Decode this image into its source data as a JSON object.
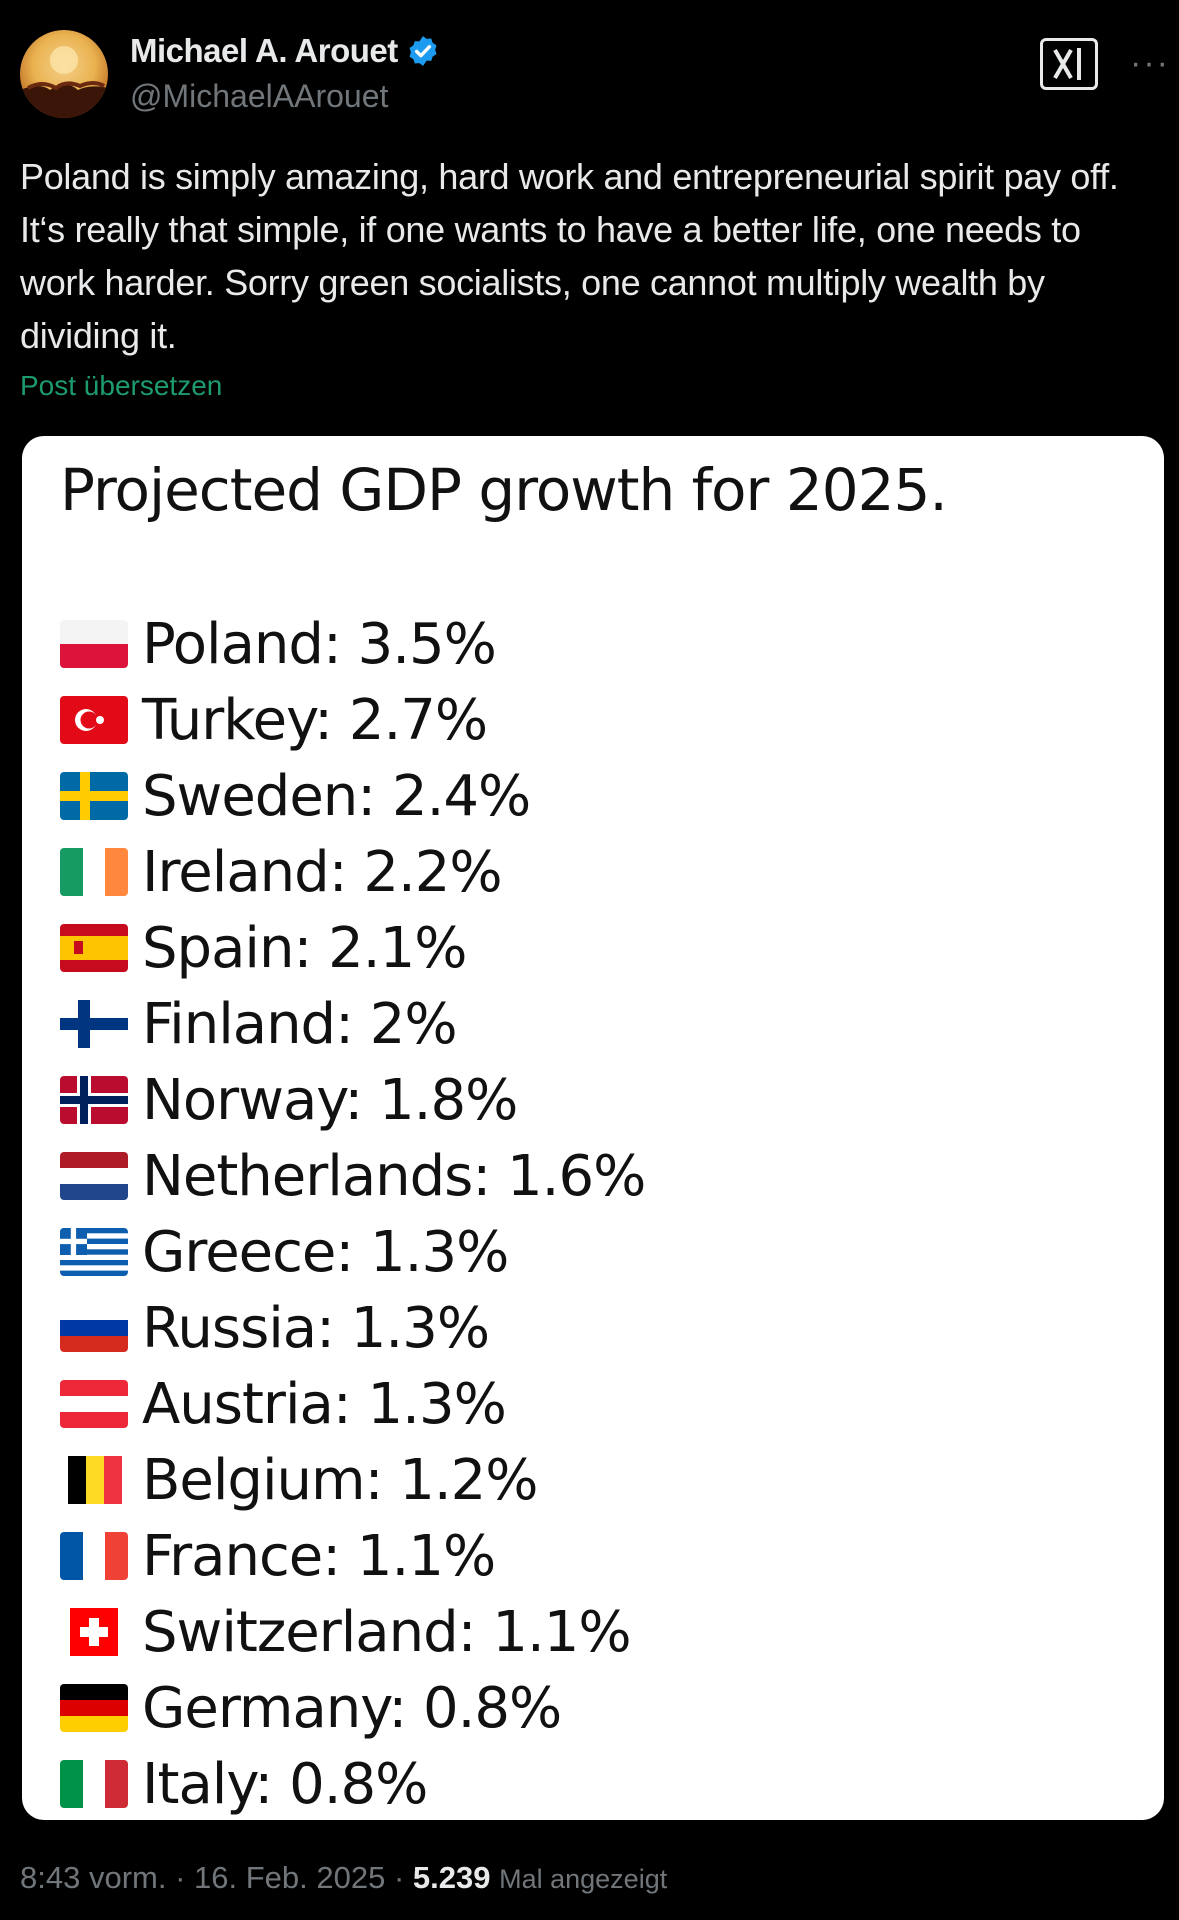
{
  "author": {
    "name": "Michael A. Arouet",
    "handle": "@MichaelAArouet"
  },
  "tweet": {
    "text": "Poland is simply amazing, hard work and entrepreneurial spirit pay off. It‘s really that simple, if one wants to have a better life, one needs to work harder. Sorry green socialists, one cannot multiply wealth by dividing it.",
    "translate_label": "Post übersetzen"
  },
  "card": {
    "title": "Projected GDP growth for 2025.",
    "rows": [
      {
        "country": "Poland",
        "value": "3.5%",
        "flag": "poland-flag-icon"
      },
      {
        "country": "Turkey",
        "value": "2.7%",
        "flag": "turkey-flag-icon"
      },
      {
        "country": "Sweden",
        "value": "2.4%",
        "flag": "sweden-flag-icon"
      },
      {
        "country": "Ireland",
        "value": "2.2%",
        "flag": "ireland-flag-icon"
      },
      {
        "country": "Spain",
        "value": "2.1%",
        "flag": "spain-flag-icon"
      },
      {
        "country": "Finland",
        "value": "2%",
        "flag": "finland-flag-icon"
      },
      {
        "country": "Norway",
        "value": "1.8%",
        "flag": "norway-flag-icon"
      },
      {
        "country": "Netherlands",
        "value": "1.6%",
        "flag": "netherlands-flag-icon"
      },
      {
        "country": "Greece",
        "value": "1.3%",
        "flag": "greece-flag-icon"
      },
      {
        "country": "Russia",
        "value": "1.3%",
        "flag": "russia-flag-icon"
      },
      {
        "country": "Austria",
        "value": "1.3%",
        "flag": "austria-flag-icon"
      },
      {
        "country": "Belgium",
        "value": "1.2%",
        "flag": "belgium-flag-icon"
      },
      {
        "country": "France",
        "value": "1.1%",
        "flag": "france-flag-icon"
      },
      {
        "country": "Switzerland",
        "value": "1.1%",
        "flag": "switzerland-flag-icon"
      },
      {
        "country": "Germany",
        "value": "0.8%",
        "flag": "germany-flag-icon"
      },
      {
        "country": "Italy",
        "value": "0.8%",
        "flag": "italy-flag-icon"
      }
    ]
  },
  "footer": {
    "time": "8:43 vorm.",
    "date": "16. Feb. 2025",
    "views": "5.239",
    "views_label": "Mal angezeigt"
  },
  "colors": {
    "background": "#000000",
    "text": "#e7e9ea",
    "muted": "#71767b",
    "translate": "#1d9b6c",
    "verified": "#1d9bf0"
  }
}
